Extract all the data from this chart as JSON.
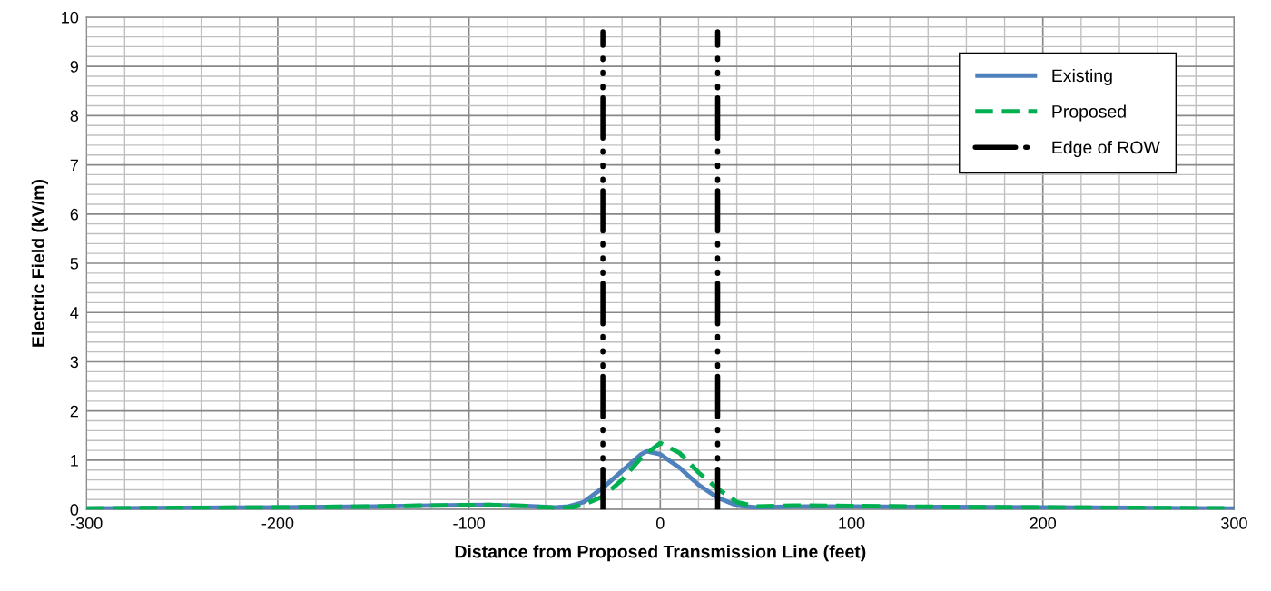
{
  "chart_data": {
    "type": "line",
    "xlabel": "Distance from Proposed Transmission Line (feet)",
    "ylabel": "Electric Field (kV/m)",
    "xlim": [
      -300,
      300
    ],
    "xticks": [
      -300,
      -200,
      -100,
      0,
      100,
      200,
      300
    ],
    "ylim": [
      0,
      10
    ],
    "yticks": [
      0,
      1,
      2,
      3,
      4,
      5,
      6,
      7,
      8,
      9,
      10
    ],
    "grid": true,
    "legend": "top right",
    "series": [
      {
        "name": "Existing",
        "color": "#4f81bd",
        "line_style": "solid",
        "x": [
          -300,
          -250,
          -200,
          -150,
          -120,
          -90,
          -70,
          -55,
          -48,
          -40,
          -30,
          -20,
          -10,
          -7,
          0,
          10,
          20,
          30,
          40,
          50,
          70,
          100,
          150,
          200,
          250,
          300
        ],
        "values": [
          0.02,
          0.03,
          0.04,
          0.06,
          0.08,
          0.09,
          0.07,
          0.04,
          0.06,
          0.15,
          0.44,
          0.78,
          1.12,
          1.18,
          1.12,
          0.85,
          0.5,
          0.24,
          0.08,
          0.04,
          0.06,
          0.06,
          0.05,
          0.04,
          0.03,
          0.02
        ]
      },
      {
        "name": "Proposed",
        "color": "#00b050",
        "line_style": "dashed",
        "x": [
          -300,
          -250,
          -200,
          -150,
          -120,
          -90,
          -70,
          -55,
          -45,
          -40,
          -30,
          -20,
          -10,
          0,
          10,
          20,
          30,
          40,
          50,
          70,
          100,
          150,
          200,
          250,
          300
        ],
        "values": [
          0.02,
          0.03,
          0.04,
          0.06,
          0.08,
          0.09,
          0.07,
          0.03,
          0.05,
          0.1,
          0.26,
          0.6,
          1.05,
          1.35,
          1.15,
          0.75,
          0.42,
          0.15,
          0.06,
          0.08,
          0.07,
          0.05,
          0.04,
          0.03,
          0.02
        ]
      },
      {
        "name": "Edge of ROW",
        "color": "#000000",
        "line_style": "dashdot",
        "x": [
          -30,
          -30,
          0,
          30,
          30
        ],
        "values": [
          0,
          9.7,
          null,
          0,
          9.7
        ]
      }
    ]
  }
}
